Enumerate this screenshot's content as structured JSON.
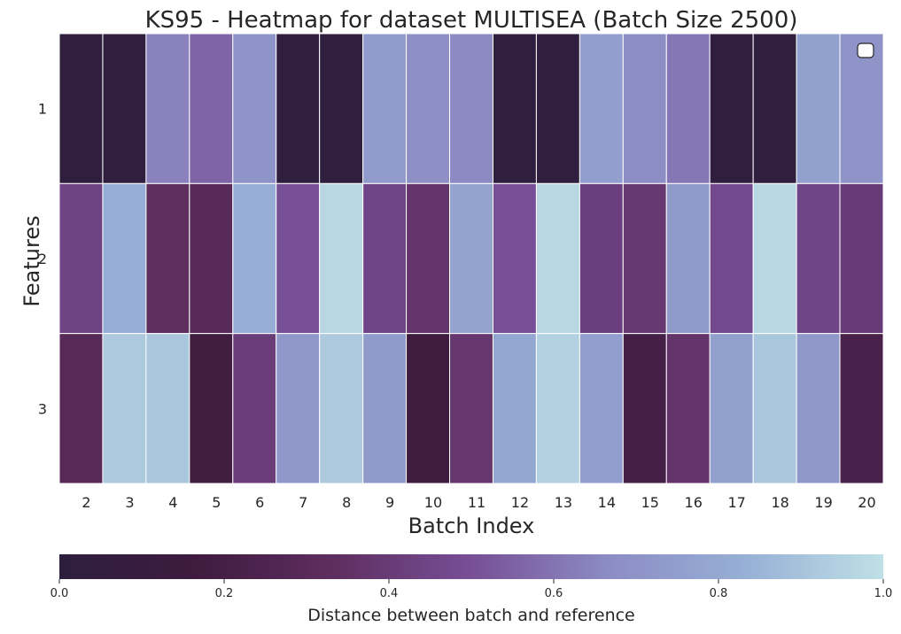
{
  "chart_data": {
    "type": "heatmap",
    "title": "KS95 - Heatmap for dataset MULTISEA (Batch Size 2500)",
    "xlabel": "Batch Index",
    "ylabel": "Features",
    "x_tick_labels": [
      "2",
      "3",
      "4",
      "5",
      "6",
      "7",
      "8",
      "9",
      "10",
      "11",
      "12",
      "13",
      "14",
      "15",
      "16",
      "17",
      "18",
      "19",
      "20"
    ],
    "y_tick_labels": [
      "1",
      "2",
      "3"
    ],
    "colorbar": {
      "label": "Distance between batch and reference",
      "range": [
        0.0,
        1.0
      ],
      "ticks": [
        "0.0",
        "0.2",
        "0.4",
        "0.6",
        "0.8",
        "1.0"
      ],
      "colors": [
        "#2d1e3e",
        "#3e1b3f",
        "#5f2e60",
        "#774f97",
        "#8c8cc4",
        "#97b0d6",
        "#bfe0e6"
      ]
    },
    "values": [
      [
        0.02,
        0.02,
        0.64,
        0.56,
        0.7,
        0.02,
        0.02,
        0.74,
        0.68,
        0.66,
        0.02,
        0.02,
        0.75,
        0.67,
        0.61,
        0.02,
        0.02,
        0.76,
        0.7
      ],
      [
        0.44,
        0.82,
        0.33,
        0.3,
        0.83,
        0.5,
        0.97,
        0.45,
        0.37,
        0.77,
        0.5,
        0.97,
        0.42,
        0.39,
        0.73,
        0.47,
        0.97,
        0.45,
        0.4
      ],
      [
        0.29,
        0.92,
        0.91,
        0.18,
        0.41,
        0.72,
        0.92,
        0.73,
        0.17,
        0.38,
        0.79,
        0.95,
        0.75,
        0.2,
        0.36,
        0.76,
        0.91,
        0.72,
        0.22
      ]
    ],
    "legend": {
      "position": "top-right",
      "entries": []
    }
  }
}
